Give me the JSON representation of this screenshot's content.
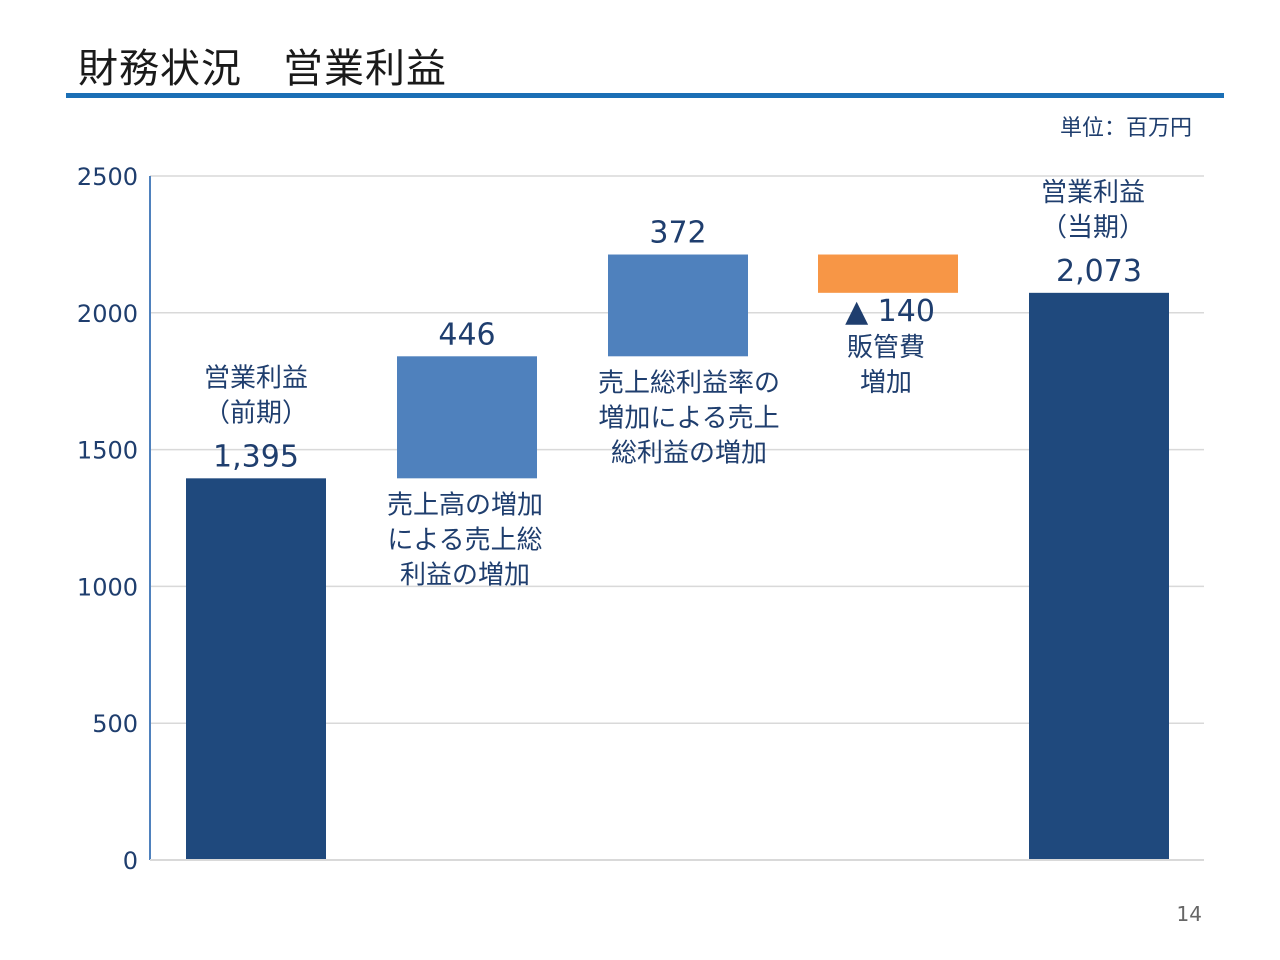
{
  "header": {
    "title": "財務状況　営業利益",
    "unit": "単位：百万円",
    "page_number": "14"
  },
  "colors": {
    "dark_bar": "#1f497d",
    "light_bar": "#4f81bd",
    "orange_bar": "#f79646",
    "axis": "#4f81bd",
    "grid": "#d9d9d9",
    "text": "#1f3e6e"
  },
  "chart_data": {
    "type": "bar",
    "subtype": "waterfall",
    "ylim": [
      0,
      2500
    ],
    "yticks": [
      "0",
      "500",
      "1000",
      "1500",
      "2000",
      "2500"
    ],
    "grid": true,
    "bars": [
      {
        "id": "prev",
        "desc": [
          "営業利益",
          "（前期）"
        ],
        "value_label": "1,395",
        "start": 0,
        "end": 1395,
        "style": "dark"
      },
      {
        "id": "sales",
        "desc": [
          "売上高の増加",
          "による売上総",
          "利益の増加"
        ],
        "value_label": "446",
        "start": 1395,
        "end": 1841,
        "style": "light"
      },
      {
        "id": "margin",
        "desc": [
          "売上総利益率の",
          "増加による売上",
          "総利益の増加"
        ],
        "value_label": "372",
        "start": 1841,
        "end": 2213,
        "style": "light"
      },
      {
        "id": "sga",
        "desc": [
          "販管費",
          "増加"
        ],
        "value_label": "▲ 140",
        "start": 2073,
        "end": 2213,
        "style": "orange"
      },
      {
        "id": "curr",
        "desc": [
          "営業利益",
          "（当期）"
        ],
        "value_label": "2,073",
        "start": 0,
        "end": 2073,
        "style": "dark"
      }
    ]
  }
}
